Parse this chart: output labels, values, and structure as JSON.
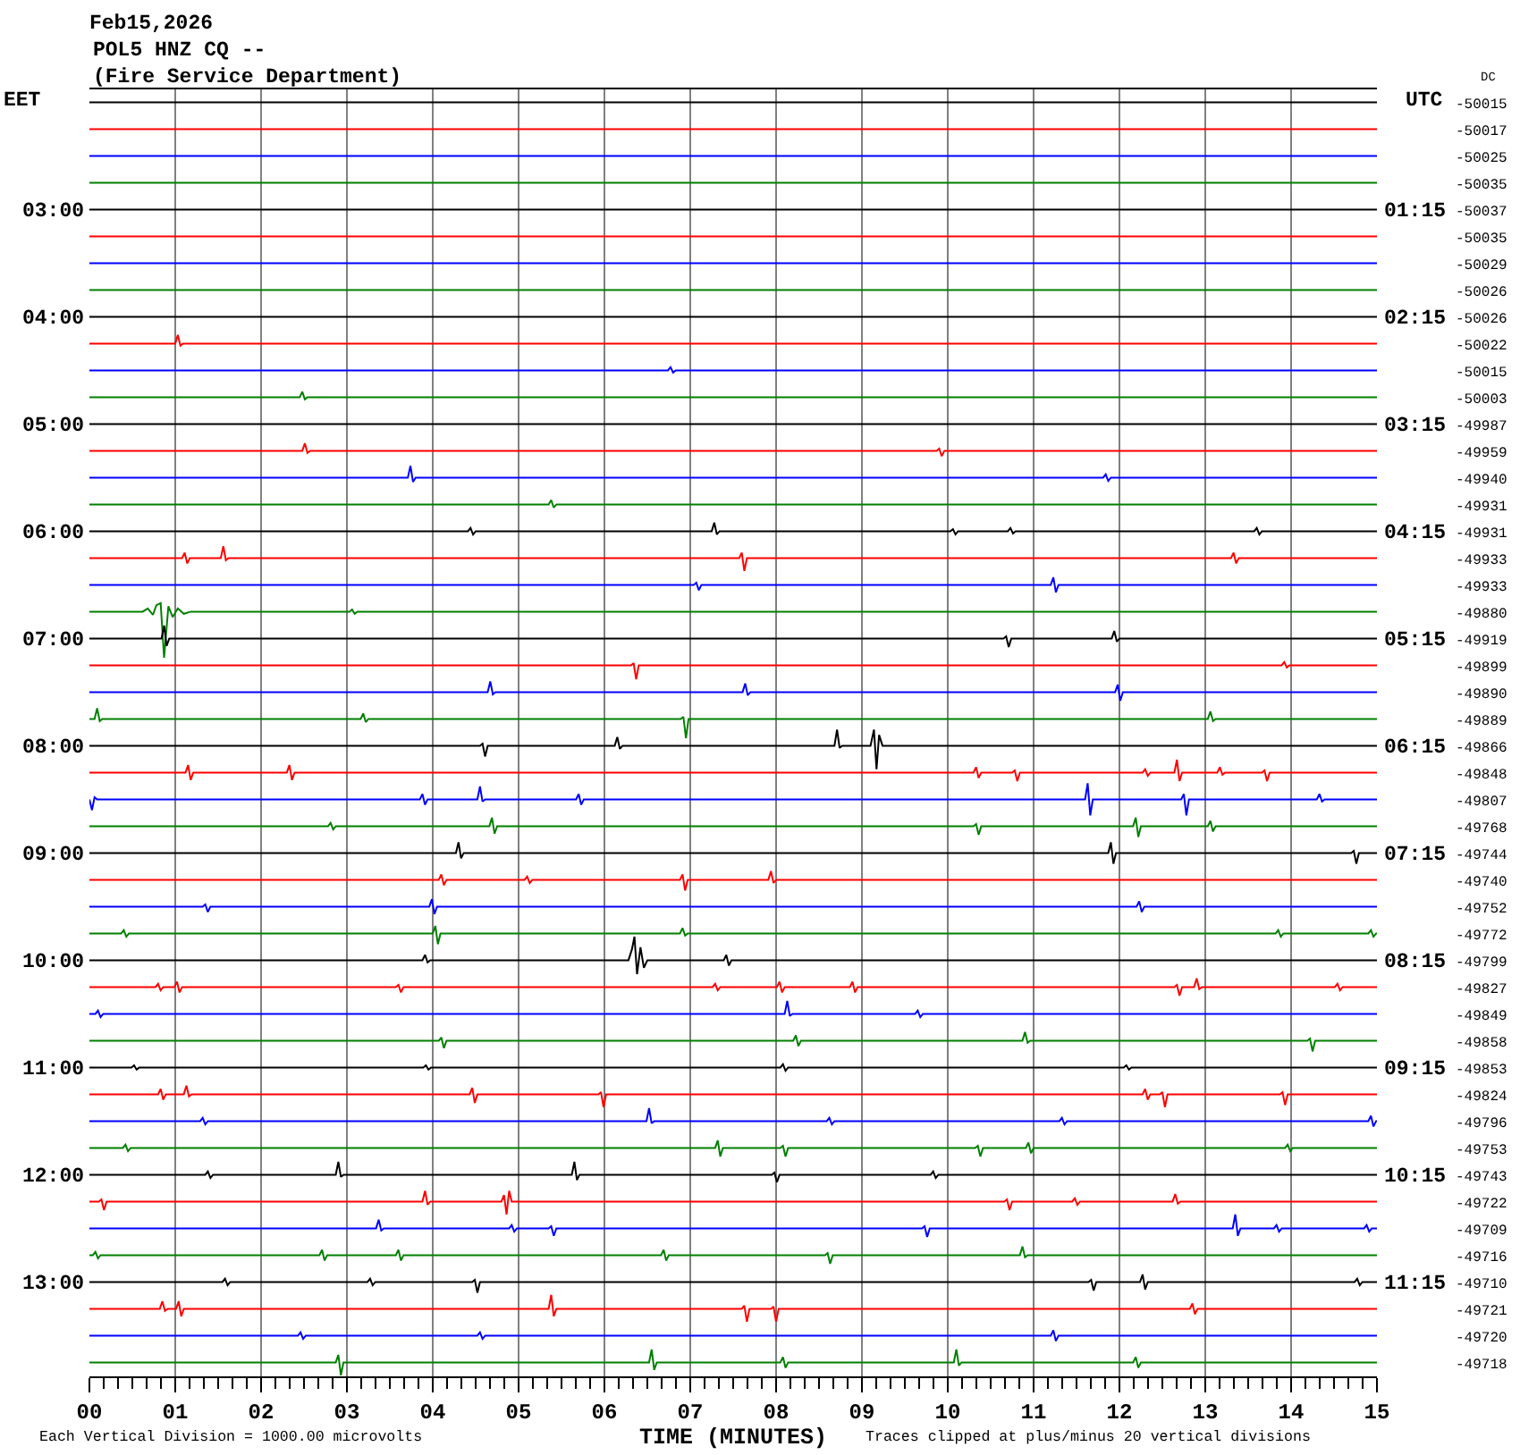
{
  "chart_data": {
    "type": "line",
    "title": "Feb15,2026",
    "subtitle": "POL5 HNZ CQ --\n(Fire Service Department)",
    "xlabel": "TIME (MINUTES)",
    "ylabel": "EET",
    "y2label": "DC",
    "y3label": "UTC",
    "annotations": [
      "Each Vertical Division = 1000.00 microvolts",
      "Traces clipped at plus/minus 20 vertical divisions"
    ],
    "xlim": [
      0,
      15
    ],
    "xticks": [
      {
        "value": 0,
        "label": "00"
      },
      {
        "value": 0.17,
        "label": null
      },
      {
        "value": 0.33,
        "label": null
      },
      {
        "value": 0.5,
        "label": null
      },
      {
        "value": 0.67,
        "label": null
      },
      {
        "value": 0.83,
        "label": null
      },
      {
        "value": 1,
        "label": "01"
      },
      {
        "value": 1.17,
        "label": null
      },
      {
        "value": 1.33,
        "label": null
      },
      {
        "value": 1.5,
        "label": null
      },
      {
        "value": 1.67,
        "label": null
      },
      {
        "value": 1.83,
        "label": null
      },
      {
        "value": 2,
        "label": "02"
      },
      {
        "value": 2.17,
        "label": null
      },
      {
        "value": 2.33,
        "label": null
      },
      {
        "value": 2.5,
        "label": null
      },
      {
        "value": 2.67,
        "label": null
      },
      {
        "value": 2.83,
        "label": null
      },
      {
        "value": 3,
        "label": "03"
      },
      {
        "value": 3.17,
        "label": null
      },
      {
        "value": 3.33,
        "label": null
      },
      {
        "value": 3.5,
        "label": null
      },
      {
        "value": 3.67,
        "label": null
      },
      {
        "value": 3.83,
        "label": null
      },
      {
        "value": 4,
        "label": "04"
      },
      {
        "value": 4.17,
        "label": null
      },
      {
        "value": 4.33,
        "label": null
      },
      {
        "value": 4.5,
        "label": null
      },
      {
        "value": 4.67,
        "label": null
      },
      {
        "value": 4.83,
        "label": null
      },
      {
        "value": 5,
        "label": "05"
      },
      {
        "value": 5.17,
        "label": null
      },
      {
        "value": 5.33,
        "label": null
      },
      {
        "value": 5.5,
        "label": null
      },
      {
        "value": 5.67,
        "label": null
      },
      {
        "value": 5.83,
        "label": null
      },
      {
        "value": 6,
        "label": "06"
      },
      {
        "value": 6.17,
        "label": null
      },
      {
        "value": 6.33,
        "label": null
      },
      {
        "value": 6.5,
        "label": null
      },
      {
        "value": 6.67,
        "label": null
      },
      {
        "value": 6.83,
        "label": null
      },
      {
        "value": 7,
        "label": "07"
      },
      {
        "value": 7.17,
        "label": null
      },
      {
        "value": 7.33,
        "label": null
      },
      {
        "value": 7.5,
        "label": null
      },
      {
        "value": 7.67,
        "label": null
      },
      {
        "value": 7.83,
        "label": null
      },
      {
        "value": 8,
        "label": "08"
      },
      {
        "value": 8.17,
        "label": null
      },
      {
        "value": 8.33,
        "label": null
      },
      {
        "value": 8.5,
        "label": null
      },
      {
        "value": 8.67,
        "label": null
      },
      {
        "value": 8.83,
        "label": null
      },
      {
        "value": 9,
        "label": "09"
      },
      {
        "value": 9.17,
        "label": null
      },
      {
        "value": 9.33,
        "label": null
      },
      {
        "value": 9.5,
        "label": null
      },
      {
        "value": 9.67,
        "label": null
      },
      {
        "value": 9.83,
        "label": null
      },
      10,
      {
        "value": 10.17,
        "label": null
      },
      {
        "value": 10.33,
        "label": null
      },
      {
        "value": 10.5,
        "label": null
      },
      {
        "value": 10.67,
        "label": null
      },
      {
        "value": 10.83,
        "label": null
      },
      11,
      {
        "value": 11.17,
        "label": null
      },
      {
        "value": 11.33,
        "label": null
      },
      {
        "value": 11.5,
        "label": null
      },
      {
        "value": 11.67,
        "label": null
      },
      {
        "value": 11.83,
        "label": null
      },
      12,
      {
        "value": 12.17,
        "label": null
      },
      {
        "value": 12.33,
        "label": null
      },
      {
        "value": 12.5,
        "label": null
      },
      {
        "value": 12.67,
        "label": null
      },
      {
        "value": 12.83,
        "label": null
      },
      13,
      {
        "value": 13.17,
        "label": null
      },
      {
        "value": 13.33,
        "label": null
      },
      {
        "value": 13.5,
        "label": null
      },
      {
        "value": 13.67,
        "label": null
      },
      {
        "value": 13.83,
        "label": null
      },
      14,
      {
        "value": 14.17,
        "label": null
      },
      {
        "value": 14.33,
        "label": null
      },
      {
        "value": 14.5,
        "label": null
      },
      {
        "value": 14.67,
        "label": null
      },
      {
        "value": 14.83,
        "label": null
      },
      15
    ],
    "ylim": [
      13.88,
      1.88
    ],
    "yticks": [
      {
        "value": 3,
        "label": "03:00"
      },
      {
        "value": 4,
        "label": "04:00"
      },
      {
        "value": 5,
        "label": "05:00"
      },
      {
        "value": 6,
        "label": "06:00"
      },
      {
        "value": 7,
        "label": "07:00"
      },
      {
        "value": 8,
        "label": "08:00"
      },
      {
        "value": 9,
        "label": "09:00"
      },
      {
        "value": 10,
        "label": "10:00"
      },
      {
        "value": 11,
        "label": "11:00"
      },
      {
        "value": 12,
        "label": "12:00"
      },
      {
        "value": 13,
        "label": "13:00"
      }
    ],
    "y2_categories": [
      "-50015",
      "-50017",
      "-50025",
      "-50035",
      "-50037",
      "-50035",
      "-50029",
      "-50026",
      "-50026",
      "-50022",
      "-50015",
      "-50003",
      "-49987",
      "-49959",
      "-49940",
      "-49931",
      "-49931",
      "-49933",
      "-49933",
      "-49880",
      "-49919",
      "-49899",
      "-49890",
      "-49889",
      "-49866",
      "-49848",
      "-49807",
      "-49768",
      "-49744",
      "-49740",
      "-49752",
      "-49772",
      "-49799",
      "-49827",
      "-49849",
      "-49858",
      "-49853",
      "-49824",
      "-49796",
      "-49753",
      "-49743",
      "-49722",
      "-49709",
      "-49716",
      "-49710",
      "-49721",
      "-49720",
      "-49718"
    ],
    "y3lim": [
      12.13,
      0.13
    ],
    "y3ticks": [
      {
        "value": 1.25,
        "label": "01:15"
      },
      {
        "value": 2.25,
        "label": "02:15"
      },
      {
        "value": 3.25,
        "label": "03:15"
      },
      {
        "value": 4.25,
        "label": "04:15"
      },
      {
        "value": 5.25,
        "label": "05:15"
      },
      {
        "value": 6.25,
        "label": "06:15"
      },
      {
        "value": 7.25,
        "label": "07:15"
      },
      {
        "value": 8.25,
        "label": "08:15"
      },
      {
        "value": 9.25,
        "label": "09:15"
      },
      {
        "value": 10.25,
        "label": "10:15"
      },
      {
        "value": 11.25,
        "label": "11:15"
      }
    ],
    "grid": "x",
    "marker": "none",
    "line_style": "solid",
    "series": [
      {
        "color": "#000000",
        "x": [
          0,
          15
        ],
        "values": [
          2,
          2
        ]
      },
      {
        "color": "#ff0000",
        "x": [
          0,
          15
        ],
        "values": [
          2.25,
          2.25
        ]
      },
      {
        "color": "#0000ff",
        "x": [
          0,
          15
        ],
        "values": [
          2.5,
          2.5
        ]
      },
      {
        "color": "#008000",
        "x": [
          0,
          15
        ],
        "values": [
          2.75,
          2.75
        ]
      },
      {
        "color": "#000000",
        "x": [
          0,
          15
        ],
        "values": [
          3,
          3
        ]
      },
      {
        "color": "#ff0000",
        "x": [
          0,
          15
        ],
        "values": [
          3.25,
          3.25
        ]
      },
      {
        "color": "#0000ff",
        "x": [
          0,
          15
        ],
        "values": [
          3.5,
          3.5
        ]
      },
      {
        "color": "#008000",
        "x": [
          0,
          15
        ],
        "values": [
          3.75,
          3.75
        ]
      },
      {
        "color": "#000000",
        "x": [
          0,
          15
        ],
        "values": [
          4,
          4
        ]
      },
      {
        "color": "#ff0000",
        "x": [
          0,
          1,
          1.03,
          1.06,
          1.09,
          15
        ],
        "values": [
          4.25,
          4.25,
          4.17,
          4.27,
          4.25,
          4.25
        ]
      },
      {
        "color": "#0000ff",
        "x": [
          0,
          6.74,
          6.77,
          6.8,
          6.83,
          15
        ],
        "values": [
          4.5,
          4.5,
          4.47,
          4.52,
          4.5,
          4.5
        ]
      },
      {
        "color": "#008000",
        "x": [
          0,
          2.45,
          2.48,
          2.51,
          2.54,
          15
        ],
        "values": [
          4.75,
          4.75,
          4.7,
          4.77,
          4.75,
          4.75
        ]
      },
      {
        "color": "#000000",
        "x": [
          0,
          15
        ],
        "values": [
          5,
          5
        ]
      },
      {
        "color": "#ff0000",
        "x": [
          0,
          2.48,
          2.51,
          2.54,
          2.57,
          9.87,
          9.9,
          9.93,
          9.96,
          15
        ],
        "values": [
          5.25,
          5.25,
          5.18,
          5.27,
          5.25,
          5.25,
          5.23,
          5.3,
          5.25,
          5.25
        ]
      },
      {
        "color": "#0000ff",
        "x": [
          0,
          3.71,
          3.74,
          3.77,
          3.8,
          11.81,
          11.84,
          11.87,
          11.9,
          15
        ],
        "values": [
          5.5,
          5.5,
          5.39,
          5.54,
          5.5,
          5.5,
          5.47,
          5.53,
          5.5,
          5.5
        ]
      },
      {
        "color": "#008000",
        "x": [
          0,
          5.35,
          5.38,
          5.41,
          5.44,
          15
        ],
        "values": [
          5.75,
          5.75,
          5.71,
          5.78,
          5.75,
          5.75
        ]
      },
      {
        "color": "#000000",
        "x": [
          0,
          4.41,
          4.44,
          4.47,
          4.5,
          7.25,
          7.28,
          7.31,
          7.34,
          10.03,
          10.06,
          10.09,
          10.12,
          10.7,
          10.73,
          10.76,
          10.79,
          13.57,
          13.6,
          13.63,
          13.66,
          15
        ],
        "values": [
          6,
          6,
          5.97,
          6.03,
          6,
          6,
          5.92,
          6.03,
          6,
          6,
          5.98,
          6.03,
          6,
          6,
          5.97,
          6.02,
          6,
          6,
          5.97,
          6.03,
          6,
          6
        ]
      },
      {
        "color": "#ff0000",
        "x": [
          0,
          1.08,
          1.11,
          1.14,
          1.17,
          1.53,
          1.56,
          1.59,
          1.62,
          7.57,
          7.6,
          7.63,
          7.66,
          13.3,
          13.33,
          13.36,
          13.39,
          15
        ],
        "values": [
          6.25,
          6.25,
          6.2,
          6.3,
          6.25,
          6.25,
          6.14,
          6.27,
          6.25,
          6.25,
          6.2,
          6.37,
          6.25,
          6.25,
          6.2,
          6.3,
          6.25,
          6.25
        ]
      },
      {
        "color": "#0000ff",
        "x": [
          0,
          7.04,
          7.07,
          7.1,
          7.13,
          11.2,
          11.23,
          11.26,
          11.29,
          15
        ],
        "values": [
          6.5,
          6.5,
          6.48,
          6.55,
          6.5,
          6.5,
          6.43,
          6.57,
          6.5,
          6.5
        ]
      },
      {
        "color": "#008000",
        "x": [
          0,
          0.62,
          0.68,
          0.74,
          0.78,
          0.83,
          0.87,
          0.92,
          0.97,
          1.03,
          1.1,
          1.18,
          3.03,
          3.06,
          3.09,
          3.12,
          15
        ],
        "values": [
          6.75,
          6.75,
          6.72,
          6.78,
          6.69,
          6.67,
          7.18,
          6.7,
          6.8,
          6.72,
          6.77,
          6.75,
          6.75,
          6.73,
          6.77,
          6.75,
          6.75
        ]
      },
      {
        "color": "#000000",
        "x": [
          0,
          0.84,
          0.87,
          0.9,
          0.93,
          10.65,
          10.68,
          10.71,
          10.74,
          11.91,
          11.94,
          11.97,
          12,
          15
        ],
        "values": [
          7,
          7,
          6.88,
          7.07,
          7,
          7,
          6.98,
          7.08,
          7,
          7,
          6.93,
          7.03,
          7,
          7
        ]
      },
      {
        "color": "#ff0000",
        "x": [
          0,
          6.31,
          6.34,
          6.37,
          6.4,
          13.89,
          13.92,
          13.95,
          13.98,
          15
        ],
        "values": [
          7.25,
          7.25,
          7.23,
          7.38,
          7.25,
          7.25,
          7.22,
          7.27,
          7.25,
          7.25
        ]
      },
      {
        "color": "#0000ff",
        "x": [
          0,
          4.64,
          4.67,
          4.7,
          4.73,
          7.61,
          7.64,
          7.67,
          7.7,
          11.95,
          11.98,
          12.01,
          12.04,
          15
        ],
        "values": [
          7.5,
          7.5,
          7.4,
          7.52,
          7.5,
          7.5,
          7.42,
          7.53,
          7.5,
          7.5,
          7.43,
          7.58,
          7.5,
          7.5
        ]
      },
      {
        "color": "#008000",
        "x": [
          0,
          0.06,
          0.09,
          0.12,
          0.15,
          3.16,
          3.19,
          3.22,
          3.25,
          6.89,
          6.92,
          6.95,
          6.98,
          13.03,
          13.06,
          13.09,
          13.12,
          15
        ],
        "values": [
          7.75,
          7.75,
          7.65,
          7.77,
          7.75,
          7.75,
          7.7,
          7.78,
          7.75,
          7.75,
          7.73,
          7.93,
          7.75,
          7.75,
          7.68,
          7.77,
          7.75,
          7.75
        ]
      },
      {
        "color": "#000000",
        "x": [
          0,
          4.55,
          4.58,
          4.61,
          4.64,
          6.12,
          6.15,
          6.18,
          6.21,
          8.68,
          8.71,
          8.74,
          8.77,
          9.1,
          9.14,
          9.17,
          9.2,
          9.24,
          15
        ],
        "values": [
          8,
          8,
          7.98,
          8.1,
          8,
          8,
          7.92,
          8.03,
          8,
          8,
          7.85,
          8.02,
          8,
          8,
          7.85,
          8.22,
          7.9,
          8,
          8
        ]
      },
      {
        "color": "#ff0000",
        "x": [
          0,
          1.12,
          1.15,
          1.18,
          1.21,
          2.3,
          2.33,
          2.36,
          2.39,
          10.3,
          10.33,
          10.36,
          10.39,
          10.75,
          10.78,
          10.81,
          10.84,
          12.27,
          12.3,
          12.33,
          12.36,
          12.64,
          12.67,
          12.7,
          12.73,
          13.14,
          13.17,
          13.2,
          13.23,
          13.66,
          13.69,
          13.72,
          13.75,
          15
        ],
        "values": [
          8.25,
          8.25,
          8.18,
          8.32,
          8.25,
          8.25,
          8.18,
          8.32,
          8.25,
          8.25,
          8.2,
          8.3,
          8.25,
          8.25,
          8.23,
          8.33,
          8.25,
          8.25,
          8.22,
          8.28,
          8.25,
          8.25,
          8.13,
          8.33,
          8.25,
          8.25,
          8.2,
          8.27,
          8.25,
          8.25,
          8.23,
          8.33,
          8.25,
          8.25
        ]
      },
      {
        "color": "#0000ff",
        "x": [
          0,
          0.03,
          0.06,
          0.09,
          3.85,
          3.88,
          3.91,
          3.94,
          4.52,
          4.55,
          4.58,
          4.61,
          5.67,
          5.7,
          5.73,
          5.76,
          11.6,
          11.63,
          11.66,
          11.69,
          12.72,
          12.75,
          12.78,
          12.81,
          14.3,
          14.33,
          14.36,
          14.39,
          15
        ],
        "values": [
          8.5,
          8.6,
          8.48,
          8.5,
          8.5,
          8.45,
          8.55,
          8.5,
          8.5,
          8.38,
          8.52,
          8.5,
          8.5,
          8.45,
          8.55,
          8.5,
          8.5,
          8.35,
          8.65,
          8.5,
          8.5,
          8.45,
          8.65,
          8.5,
          8.5,
          8.45,
          8.52,
          8.5,
          8.5
        ]
      },
      {
        "color": "#008000",
        "x": [
          0,
          2.78,
          2.81,
          2.84,
          2.87,
          4.66,
          4.69,
          4.72,
          4.75,
          10.3,
          10.33,
          10.36,
          10.39,
          12.16,
          12.19,
          12.22,
          12.25,
          13.03,
          13.06,
          13.09,
          13.12,
          15
        ],
        "values": [
          8.75,
          8.75,
          8.72,
          8.78,
          8.75,
          8.75,
          8.67,
          8.82,
          8.75,
          8.75,
          8.73,
          8.83,
          8.75,
          8.75,
          8.67,
          8.85,
          8.75,
          8.75,
          8.7,
          8.8,
          8.75,
          8.75
        ]
      },
      {
        "color": "#000000",
        "x": [
          0,
          4.27,
          4.3,
          4.33,
          4.36,
          11.87,
          11.9,
          11.93,
          11.96,
          14.7,
          14.73,
          14.76,
          14.79,
          15
        ],
        "values": [
          9,
          9,
          8.9,
          9.05,
          9,
          9,
          8.9,
          9.1,
          9,
          9,
          8.98,
          9.1,
          9,
          9
        ]
      },
      {
        "color": "#ff0000",
        "x": [
          0,
          4.07,
          4.1,
          4.13,
          4.16,
          5.07,
          5.1,
          5.13,
          5.16,
          6.88,
          6.91,
          6.94,
          6.97,
          7.91,
          7.94,
          7.97,
          8,
          15
        ],
        "values": [
          9.25,
          9.25,
          9.2,
          9.3,
          9.25,
          9.25,
          9.22,
          9.28,
          9.25,
          9.25,
          9.2,
          9.35,
          9.25,
          9.25,
          9.17,
          9.28,
          9.25,
          9.25
        ]
      },
      {
        "color": "#0000ff",
        "x": [
          0,
          1.32,
          1.35,
          1.38,
          1.41,
          3.96,
          3.99,
          4.02,
          4.05,
          12.2,
          12.23,
          12.26,
          12.29,
          15
        ],
        "values": [
          9.5,
          9.5,
          9.48,
          9.55,
          9.5,
          9.5,
          9.43,
          9.57,
          9.5,
          9.5,
          9.45,
          9.55,
          9.5,
          9.5
        ]
      },
      {
        "color": "#008000",
        "x": [
          0,
          0.37,
          0.4,
          0.43,
          0.46,
          4,
          4.03,
          4.06,
          4.09,
          6.88,
          6.91,
          6.94,
          6.97,
          13.82,
          13.85,
          13.88,
          13.91,
          14.9,
          14.93,
          14.96,
          14.99,
          15
        ],
        "values": [
          9.75,
          9.75,
          9.72,
          9.78,
          9.75,
          9.75,
          9.68,
          9.85,
          9.75,
          9.75,
          9.7,
          9.77,
          9.75,
          9.75,
          9.72,
          9.78,
          9.75,
          9.75,
          9.72,
          9.78,
          9.75,
          9.75
        ]
      },
      {
        "color": "#000000",
        "x": [
          0,
          3.88,
          3.91,
          3.94,
          3.97,
          6.28,
          6.32,
          6.35,
          6.38,
          6.42,
          6.46,
          6.5,
          7.39,
          7.42,
          7.45,
          7.48,
          15
        ],
        "values": [
          10,
          10,
          9.95,
          10.02,
          10,
          10,
          9.9,
          9.78,
          10.13,
          9.88,
          10.07,
          10,
          10,
          9.95,
          10.05,
          10,
          10
        ]
      },
      {
        "color": "#ff0000",
        "x": [
          0,
          0.77,
          0.8,
          0.83,
          0.86,
          0.99,
          1.02,
          1.05,
          1.08,
          3.57,
          3.6,
          3.63,
          3.66,
          7.26,
          7.29,
          7.32,
          7.35,
          8.01,
          8.04,
          8.07,
          8.1,
          8.86,
          8.89,
          8.92,
          8.95,
          12.64,
          12.67,
          12.7,
          12.73,
          12.87,
          12.9,
          12.93,
          12.96,
          14.51,
          14.54,
          14.57,
          14.6,
          15
        ],
        "values": [
          10.25,
          10.25,
          10.22,
          10.28,
          10.25,
          10.25,
          10.2,
          10.3,
          10.25,
          10.25,
          10.23,
          10.3,
          10.25,
          10.25,
          10.22,
          10.28,
          10.25,
          10.25,
          10.2,
          10.3,
          10.25,
          10.25,
          10.2,
          10.3,
          10.25,
          10.25,
          10.23,
          10.33,
          10.25,
          10.25,
          10.17,
          10.27,
          10.25,
          10.25,
          10.22,
          10.28,
          10.25,
          10.25
        ]
      },
      {
        "color": "#0000ff",
        "x": [
          0,
          0.07,
          0.1,
          0.13,
          0.16,
          8.1,
          8.13,
          8.16,
          8.19,
          9.62,
          9.65,
          9.68,
          9.71,
          15
        ],
        "values": [
          10.5,
          10.5,
          10.47,
          10.53,
          10.5,
          10.5,
          10.38,
          10.52,
          10.5,
          10.5,
          10.47,
          10.53,
          10.5,
          10.5
        ]
      },
      {
        "color": "#008000",
        "x": [
          0,
          4.07,
          4.1,
          4.13,
          4.16,
          8.2,
          8.23,
          8.26,
          8.29,
          10.87,
          10.9,
          10.93,
          10.96,
          14.19,
          14.22,
          14.25,
          14.28,
          15
        ],
        "values": [
          10.75,
          10.75,
          10.72,
          10.82,
          10.75,
          10.75,
          10.7,
          10.8,
          10.75,
          10.75,
          10.67,
          10.77,
          10.75,
          10.75,
          10.73,
          10.85,
          10.75,
          10.75
        ]
      },
      {
        "color": "#000000",
        "x": [
          0,
          0.49,
          0.52,
          0.55,
          0.58,
          3.89,
          3.92,
          3.95,
          3.98,
          8.05,
          8.08,
          8.11,
          8.14,
          12.05,
          12.08,
          12.11,
          12.14,
          15
        ],
        "values": [
          11,
          11,
          10.98,
          11.02,
          11,
          11,
          10.98,
          11.02,
          11,
          11,
          10.97,
          11.03,
          11,
          11,
          10.98,
          11.02,
          11,
          11
        ]
      },
      {
        "color": "#ff0000",
        "x": [
          0,
          0.8,
          0.83,
          0.86,
          0.89,
          1.1,
          1.13,
          1.16,
          1.19,
          4.43,
          4.46,
          4.49,
          4.52,
          5.93,
          5.96,
          5.99,
          6.02,
          12.27,
          12.3,
          12.33,
          12.36,
          12.47,
          12.5,
          12.53,
          12.56,
          13.87,
          13.9,
          13.93,
          13.96,
          15
        ],
        "values": [
          11.25,
          11.25,
          11.2,
          11.3,
          11.25,
          11.25,
          11.17,
          11.27,
          11.25,
          11.25,
          11.19,
          11.33,
          11.25,
          11.25,
          11.23,
          11.37,
          11.25,
          11.25,
          11.2,
          11.3,
          11.25,
          11.25,
          11.23,
          11.37,
          11.25,
          11.25,
          11.23,
          11.35,
          11.25,
          11.25
        ]
      },
      {
        "color": "#0000ff",
        "x": [
          0,
          1.29,
          1.32,
          1.35,
          1.38,
          6.49,
          6.52,
          6.55,
          6.58,
          8.59,
          8.62,
          8.65,
          8.68,
          11.3,
          11.33,
          11.36,
          11.39,
          14.9,
          14.93,
          14.96,
          14.99,
          15
        ],
        "values": [
          11.5,
          11.5,
          11.47,
          11.53,
          11.5,
          11.5,
          11.38,
          11.52,
          11.5,
          11.5,
          11.47,
          11.53,
          11.5,
          11.5,
          11.47,
          11.53,
          11.5,
          11.5,
          11.45,
          11.55,
          11.5,
          11.5
        ]
      },
      {
        "color": "#008000",
        "x": [
          0,
          0.39,
          0.42,
          0.45,
          0.48,
          7.29,
          7.32,
          7.35,
          7.38,
          8.05,
          8.08,
          8.11,
          8.14,
          10.32,
          10.35,
          10.38,
          10.41,
          10.91,
          10.94,
          10.97,
          11,
          13.93,
          13.96,
          13.99,
          14.02,
          15
        ],
        "values": [
          11.75,
          11.75,
          11.72,
          11.78,
          11.75,
          11.75,
          11.68,
          11.83,
          11.75,
          11.75,
          11.73,
          11.83,
          11.75,
          11.75,
          11.73,
          11.83,
          11.75,
          11.75,
          11.7,
          11.8,
          11.75,
          11.75,
          11.72,
          11.78,
          11.75,
          11.75
        ]
      },
      {
        "color": "#000000",
        "x": [
          0,
          1.35,
          1.38,
          1.41,
          1.44,
          2.87,
          2.9,
          2.93,
          2.96,
          5.62,
          5.65,
          5.68,
          5.71,
          7.95,
          7.98,
          8.01,
          8.04,
          9.8,
          9.83,
          9.86,
          9.89,
          15
        ],
        "values": [
          12,
          12,
          11.97,
          12.03,
          12,
          12,
          11.88,
          12.02,
          12,
          12,
          11.88,
          12.05,
          12,
          12,
          11.98,
          12.07,
          12,
          12,
          11.97,
          12.03,
          12,
          12
        ]
      },
      {
        "color": "#ff0000",
        "x": [
          0,
          0.11,
          0.14,
          0.17,
          0.2,
          3.88,
          3.91,
          3.94,
          3.97,
          4.8,
          4.83,
          4.86,
          4.89,
          4.92,
          10.66,
          10.69,
          10.72,
          10.75,
          11.45,
          11.48,
          11.51,
          11.54,
          12.62,
          12.65,
          12.68,
          12.71,
          15
        ],
        "values": [
          12.25,
          12.25,
          12.23,
          12.33,
          12.25,
          12.25,
          12.15,
          12.28,
          12.25,
          12.25,
          12.19,
          12.37,
          12.15,
          12.25,
          12.25,
          12.23,
          12.33,
          12.25,
          12.25,
          12.22,
          12.28,
          12.25,
          12.25,
          12.18,
          12.27,
          12.25,
          12.25
        ]
      },
      {
        "color": "#0000ff",
        "x": [
          0,
          3.34,
          3.37,
          3.4,
          3.43,
          4.89,
          4.92,
          4.95,
          4.98,
          5.35,
          5.38,
          5.41,
          5.44,
          9.7,
          9.73,
          9.76,
          9.79,
          13.32,
          13.35,
          13.38,
          13.41,
          13.8,
          13.83,
          13.86,
          13.89,
          14.85,
          14.88,
          14.91,
          14.94,
          15
        ],
        "values": [
          12.5,
          12.5,
          12.42,
          12.52,
          12.5,
          12.5,
          12.47,
          12.53,
          12.5,
          12.5,
          12.48,
          12.57,
          12.5,
          12.5,
          12.48,
          12.58,
          12.5,
          12.5,
          12.37,
          12.57,
          12.5,
          12.5,
          12.47,
          12.53,
          12.5,
          12.5,
          12.47,
          12.53,
          12.5,
          12.5
        ]
      },
      {
        "color": "#008000",
        "x": [
          0,
          0.04,
          0.07,
          0.1,
          0.13,
          2.68,
          2.71,
          2.74,
          2.77,
          3.57,
          3.6,
          3.63,
          3.66,
          6.66,
          6.69,
          6.72,
          6.75,
          8.57,
          8.6,
          8.63,
          8.66,
          10.84,
          10.87,
          10.9,
          10.93,
          15
        ],
        "values": [
          12.75,
          12.75,
          12.72,
          12.78,
          12.75,
          12.75,
          12.7,
          12.8,
          12.75,
          12.75,
          12.7,
          12.8,
          12.75,
          12.75,
          12.7,
          12.8,
          12.75,
          12.75,
          12.73,
          12.83,
          12.75,
          12.75,
          12.67,
          12.77,
          12.75,
          12.75
        ]
      },
      {
        "color": "#000000",
        "x": [
          0,
          1.55,
          1.58,
          1.61,
          1.64,
          3.24,
          3.27,
          3.3,
          3.33,
          4.46,
          4.49,
          4.52,
          4.55,
          11.64,
          11.67,
          11.7,
          11.73,
          12.24,
          12.27,
          12.3,
          12.33,
          14.74,
          14.77,
          14.8,
          14.83,
          15
        ],
        "values": [
          13,
          13,
          12.97,
          13.03,
          13,
          13,
          12.97,
          13.03,
          13,
          13,
          12.98,
          13.1,
          13,
          13,
          12.98,
          13.08,
          13,
          13,
          12.93,
          13.07,
          13,
          13,
          12.97,
          13.03,
          13,
          13
        ]
      },
      {
        "color": "#ff0000",
        "x": [
          0,
          0.82,
          0.85,
          0.88,
          0.91,
          1.01,
          1.04,
          1.07,
          1.1,
          5.35,
          5.38,
          5.41,
          5.44,
          7.6,
          7.63,
          7.66,
          7.69,
          7.94,
          7.97,
          8,
          8.03,
          12.82,
          12.85,
          12.88,
          12.91,
          15
        ],
        "values": [
          13.25,
          13.25,
          13.18,
          13.27,
          13.25,
          13.25,
          13.18,
          13.32,
          13.25,
          13.25,
          13.12,
          13.32,
          13.25,
          13.25,
          13.22,
          13.37,
          13.25,
          13.25,
          13.23,
          13.37,
          13.25,
          13.25,
          13.2,
          13.3,
          13.25,
          13.25
        ]
      },
      {
        "color": "#0000ff",
        "x": [
          0,
          2.43,
          2.46,
          2.49,
          2.52,
          4.52,
          4.55,
          4.58,
          4.61,
          11.2,
          11.23,
          11.26,
          11.29,
          15
        ],
        "values": [
          13.5,
          13.5,
          13.47,
          13.53,
          13.5,
          13.5,
          13.47,
          13.53,
          13.5,
          13.5,
          13.45,
          13.55,
          13.5,
          13.5
        ]
      },
      {
        "color": "#008000",
        "x": [
          0,
          2.87,
          2.9,
          2.93,
          2.96,
          6.52,
          6.55,
          6.58,
          6.61,
          8.05,
          8.08,
          8.11,
          8.14,
          10.07,
          10.1,
          10.13,
          10.16,
          12.16,
          12.19,
          12.22,
          12.25,
          15
        ],
        "values": [
          13.75,
          13.75,
          13.68,
          13.87,
          13.75,
          13.75,
          13.63,
          13.82,
          13.75,
          13.75,
          13.7,
          13.8,
          13.75,
          13.75,
          13.63,
          13.78,
          13.75,
          13.75,
          13.7,
          13.8,
          13.75,
          13.75
        ]
      }
    ]
  }
}
